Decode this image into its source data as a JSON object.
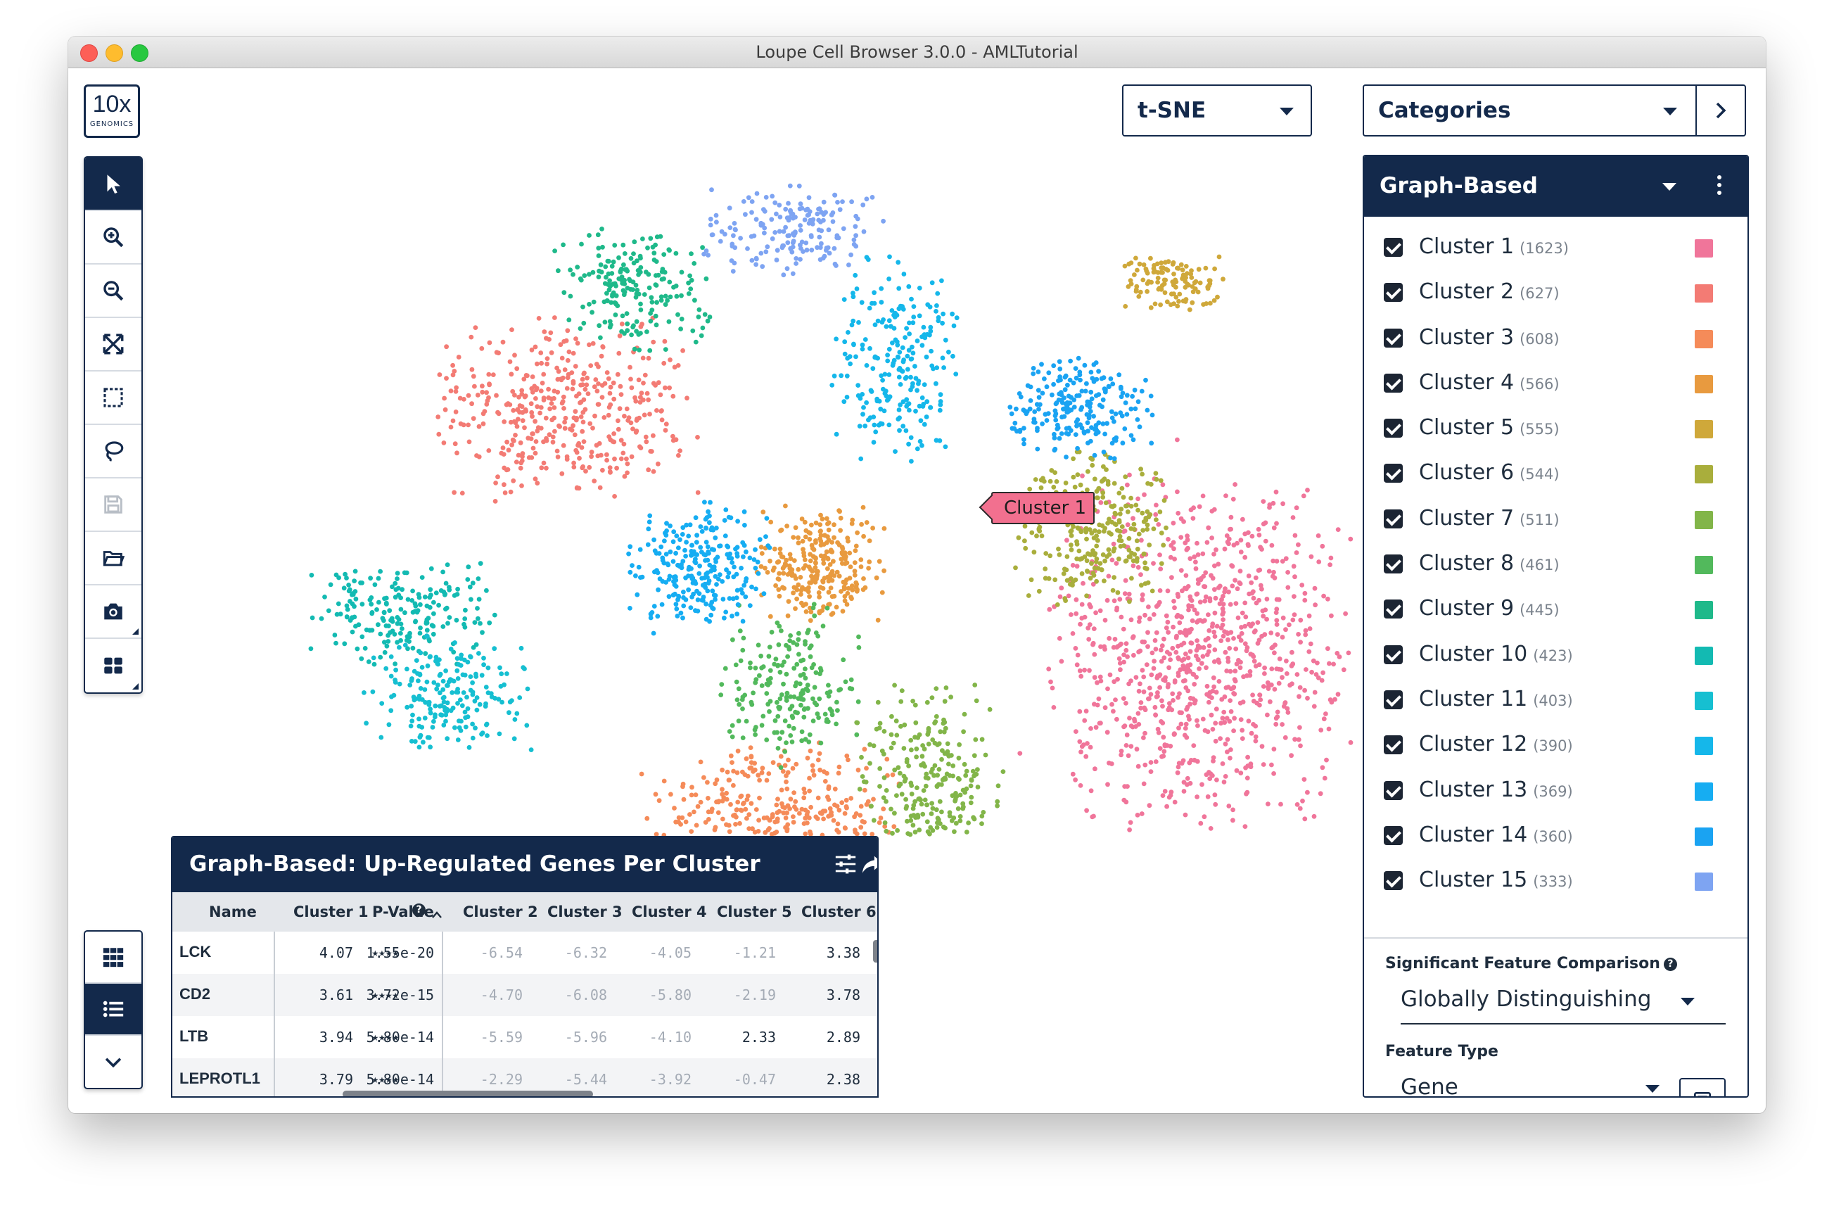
{
  "window": {
    "title": "Loupe Cell Browser 3.0.0 - AMLTutorial"
  },
  "logo": {
    "main": "10x",
    "sub": "GENOMICS"
  },
  "toolbar": {
    "tools": [
      "pointer-icon",
      "zoom-in-icon",
      "zoom-out-icon",
      "fit-icon",
      "box-select-icon",
      "lasso-icon",
      "save-icon",
      "folder-icon",
      "camera-icon",
      "layout-icon"
    ]
  },
  "view_toggles": [
    "grid-view-icon",
    "list-view-icon",
    "chevron-down-icon"
  ],
  "projection": {
    "selected": "t-SNE"
  },
  "category": {
    "selected": "Categories"
  },
  "plot": {
    "label": "Cluster 1"
  },
  "panel": {
    "title": "Graph-Based",
    "clusters": [
      {
        "name": "Cluster 1",
        "count": "(1623)",
        "color": "#f0759a"
      },
      {
        "name": "Cluster 2",
        "count": "(627)",
        "color": "#f37b74"
      },
      {
        "name": "Cluster 3",
        "count": "(608)",
        "color": "#f58b59"
      },
      {
        "name": "Cluster 4",
        "count": "(566)",
        "color": "#e89a3f"
      },
      {
        "name": "Cluster 5",
        "count": "(555)",
        "color": "#cfa83a"
      },
      {
        "name": "Cluster 6",
        "count": "(544)",
        "color": "#a9ae3c"
      },
      {
        "name": "Cluster 7",
        "count": "(511)",
        "color": "#82b549"
      },
      {
        "name": "Cluster 8",
        "count": "(461)",
        "color": "#52b95c"
      },
      {
        "name": "Cluster 9",
        "count": "(445)",
        "color": "#1fb98a"
      },
      {
        "name": "Cluster 10",
        "count": "(423)",
        "color": "#13bab2"
      },
      {
        "name": "Cluster 11",
        "count": "(403)",
        "color": "#16bfd1"
      },
      {
        "name": "Cluster 12",
        "count": "(390)",
        "color": "#15b7ea"
      },
      {
        "name": "Cluster 13",
        "count": "(369)",
        "color": "#16adf2"
      },
      {
        "name": "Cluster 14",
        "count": "(360)",
        "color": "#1aa3f2"
      },
      {
        "name": "Cluster 15",
        "count": "(333)",
        "color": "#7ea4f2"
      }
    ],
    "significant_label": "Significant Feature Comparison",
    "significant_value": "Globally Distinguishing",
    "feature_type_label": "Feature Type",
    "feature_type_value": "Gene"
  },
  "table": {
    "title": "Graph-Based: Up-Regulated Genes Per Cluster",
    "columns": [
      "Name",
      "Cluster 1",
      "P-Value",
      "Cluster 2",
      "Cluster 3",
      "Cluster 4",
      "Cluster 5",
      "Cluster 6"
    ],
    "rows": [
      {
        "name": "LCK",
        "c1": "4.07",
        "stars": "★★★★",
        "p": "1.55e-20",
        "c2": "-6.54",
        "c3": "-6.32",
        "c4": "-4.05",
        "c5": "-1.21",
        "c6": "3.38"
      },
      {
        "name": "CD2",
        "c1": "3.61",
        "stars": "★★★★",
        "p": "3.72e-15",
        "c2": "-4.70",
        "c3": "-6.08",
        "c4": "-5.80",
        "c5": "-2.19",
        "c6": "3.78"
      },
      {
        "name": "LTB",
        "c1": "3.94",
        "stars": "★★★★",
        "p": "5.80e-14",
        "c2": "-5.59",
        "c3": "-5.96",
        "c4": "-4.10",
        "c5": "2.33",
        "c6": "2.89"
      },
      {
        "name": "LEPROTL1",
        "c1": "3.79",
        "stars": "★★★★",
        "p": "5.80e-14",
        "c2": "-2.29",
        "c3": "-5.44",
        "c4": "-3.92",
        "c5": "-0.47",
        "c6": "2.38"
      }
    ]
  },
  "chart_data": {
    "type": "scatter",
    "title": "",
    "xlabel": "",
    "ylabel": "",
    "series": [
      {
        "name": "Cluster 1",
        "color": "#f0759a",
        "center": [
          1485,
          815
        ],
        "spread": [
          200,
          230
        ],
        "n": 900
      },
      {
        "name": "Cluster 2",
        "color": "#f37b74",
        "center": [
          590,
          470
        ],
        "spread": [
          170,
          120
        ],
        "n": 420
      },
      {
        "name": "Cluster 3",
        "color": "#f58b59",
        "center": [
          880,
          1060
        ],
        "spread": [
          170,
          110
        ],
        "n": 420
      },
      {
        "name": "Cluster 4",
        "color": "#e89a3f",
        "center": [
          950,
          690
        ],
        "spread": [
          85,
          80
        ],
        "n": 260
      },
      {
        "name": "Cluster 5",
        "color": "#cfa83a",
        "center": [
          1450,
          290
        ],
        "spread": [
          75,
          40
        ],
        "n": 120
      },
      {
        "name": "Cluster 6",
        "color": "#a9ae3c",
        "center": [
          1335,
          640
        ],
        "spread": [
          100,
          100
        ],
        "n": 300
      },
      {
        "name": "Cluster 7",
        "color": "#82b549",
        "center": [
          1105,
          1010
        ],
        "spread": [
          95,
          140
        ],
        "n": 300
      },
      {
        "name": "Cluster 8",
        "color": "#52b95c",
        "center": [
          905,
          860
        ],
        "spread": [
          90,
          110
        ],
        "n": 200
      },
      {
        "name": "Cluster 9",
        "color": "#1fb98a",
        "center": [
          685,
          300
        ],
        "spread": [
          110,
          80
        ],
        "n": 200
      },
      {
        "name": "Cluster 10",
        "color": "#13bab2",
        "center": [
          355,
          760
        ],
        "spread": [
          120,
          70
        ],
        "n": 210
      },
      {
        "name": "Cluster 11",
        "color": "#16bfd1",
        "center": [
          420,
          875
        ],
        "spread": [
          110,
          80
        ],
        "n": 200
      },
      {
        "name": "Cluster 12",
        "color": "#15b7ea",
        "center": [
          1055,
          400
        ],
        "spread": [
          85,
          135
        ],
        "n": 230
      },
      {
        "name": "Cluster 13",
        "color": "#16adf2",
        "center": [
          775,
          695
        ],
        "spread": [
          95,
          85
        ],
        "n": 260
      },
      {
        "name": "Cluster 14",
        "color": "#1aa3f2",
        "center": [
          1320,
          470
        ],
        "spread": [
          100,
          70
        ],
        "n": 220
      },
      {
        "name": "Cluster 15",
        "color": "#7ea4f2",
        "center": [
          910,
          215
        ],
        "spread": [
          120,
          60
        ],
        "n": 180
      }
    ]
  }
}
